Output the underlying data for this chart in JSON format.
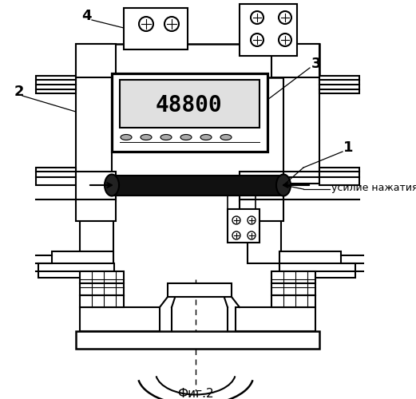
{
  "fig_label": "Фиг.2",
  "bg_color": "#ffffff",
  "line_color": "#000000",
  "display_number": "48800",
  "annotation_text": "усилие нажатия",
  "figsize": [
    5.21,
    5.0
  ],
  "dpi": 100
}
